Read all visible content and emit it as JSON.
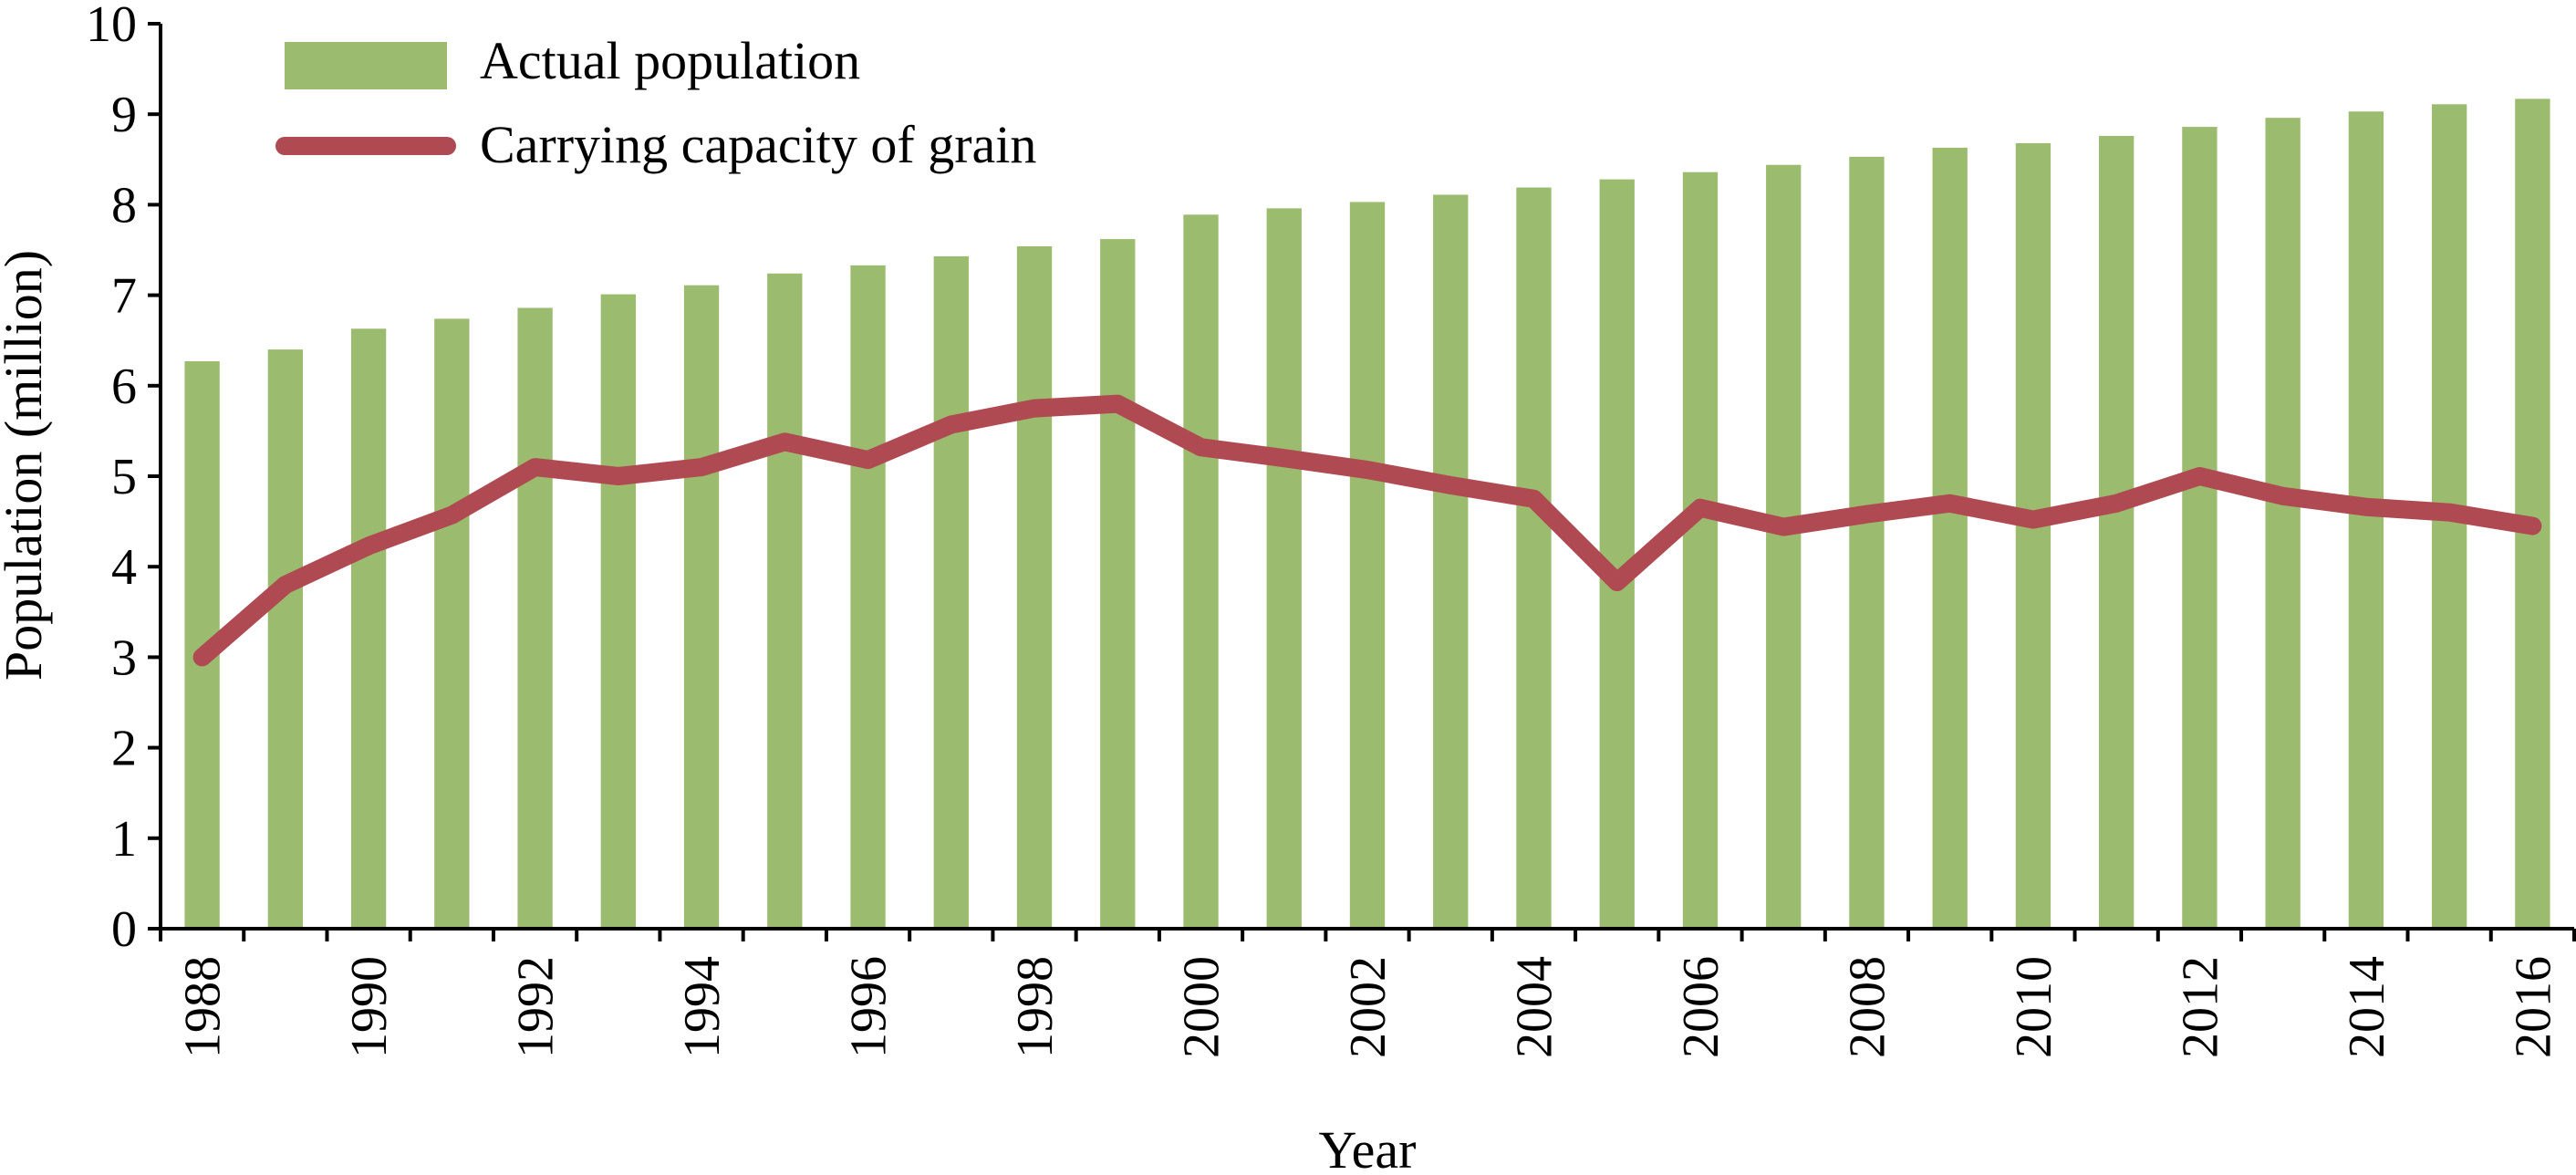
{
  "chart_data": {
    "type": "bar",
    "xlabel": "Year",
    "ylabel": "Population (million)",
    "ylim": [
      0,
      10
    ],
    "yticks": [
      "0",
      "1",
      "2",
      "3",
      "4",
      "5",
      "6",
      "7",
      "8",
      "9",
      "10"
    ],
    "x": [
      1988,
      1989,
      1990,
      1991,
      1992,
      1993,
      1994,
      1995,
      1996,
      1997,
      1998,
      1999,
      2000,
      2001,
      2002,
      2003,
      2004,
      2005,
      2006,
      2007,
      2008,
      2009,
      2010,
      2011,
      2012,
      2013,
      2014,
      2015,
      2016
    ],
    "xtick_labels": [
      "1988",
      "1990",
      "1992",
      "1994",
      "1996",
      "1998",
      "2000",
      "2002",
      "2004",
      "2006",
      "2008",
      "2010",
      "2012",
      "2014",
      "2016"
    ],
    "grid": false,
    "legend_position": "top-left",
    "series": [
      {
        "name": "Actual population",
        "kind": "bar",
        "color": "#9bbb6e",
        "values": [
          6.27,
          6.4,
          6.63,
          6.74,
          6.86,
          7.01,
          7.11,
          7.24,
          7.33,
          7.43,
          7.54,
          7.62,
          7.89,
          7.96,
          8.03,
          8.11,
          8.19,
          8.28,
          8.36,
          8.44,
          8.53,
          8.63,
          8.68,
          8.76,
          8.86,
          8.96,
          9.03,
          9.11,
          9.17
        ]
      },
      {
        "name": "Carrying capacity of grain",
        "kind": "line",
        "color": "#b04a52",
        "values": [
          3.0,
          3.8,
          4.23,
          4.57,
          5.1,
          5.0,
          5.1,
          5.38,
          5.18,
          5.57,
          5.75,
          5.8,
          5.32,
          5.2,
          5.07,
          4.9,
          4.75,
          3.83,
          4.65,
          4.44,
          4.58,
          4.7,
          4.52,
          4.7,
          5.0,
          4.78,
          4.66,
          4.6,
          4.45
        ]
      }
    ]
  }
}
